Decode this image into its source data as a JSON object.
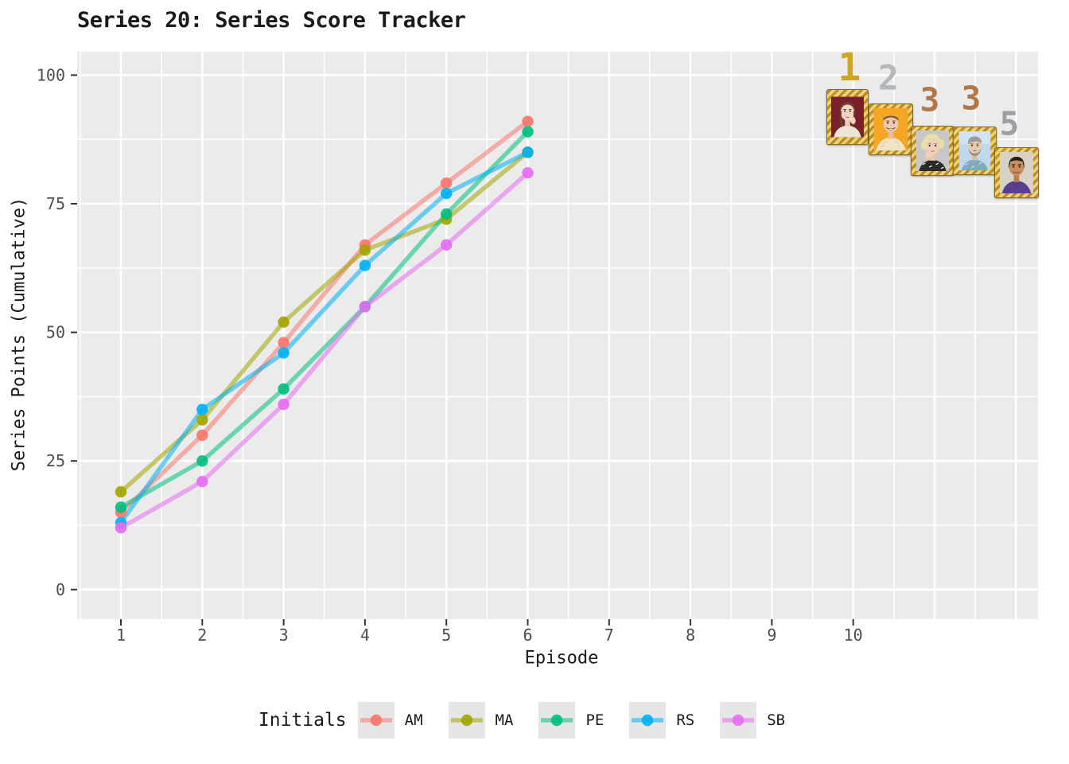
{
  "header": {
    "title": "Series 20: Series Score Tracker"
  },
  "chart_data": {
    "type": "line",
    "title": "Series 20: Series Score Tracker",
    "x": [
      1,
      2,
      3,
      4,
      5,
      6
    ],
    "xlabel": "Episode",
    "ylabel": "Series Points (Cumulative)",
    "x_ticks": [
      1,
      2,
      3,
      4,
      5,
      6,
      7,
      8,
      9,
      10
    ],
    "y_ticks": [
      0,
      25,
      50,
      75,
      100
    ],
    "xlim": [
      0.45,
      12.3
    ],
    "ylim": [
      -5.8,
      104.6
    ],
    "grid": "white major and minor gridlines on grey panel",
    "panel_color": "#EBEBEB",
    "legend_title": "Initials",
    "legend_position": "bottom",
    "series": [
      {
        "name": "AM",
        "color": "#F8766D",
        "values": [
          15,
          30,
          48,
          67,
          79,
          91
        ]
      },
      {
        "name": "MA",
        "color": "#A3A500",
        "values": [
          19,
          33,
          52,
          66,
          72,
          85
        ]
      },
      {
        "name": "PE",
        "color": "#00BF7D",
        "values": [
          16,
          25,
          39,
          55,
          73,
          89
        ]
      },
      {
        "name": "RS",
        "color": "#00B0F6",
        "values": [
          13,
          35,
          46,
          63,
          77,
          85
        ]
      },
      {
        "name": "SB",
        "color": "#E76BF3",
        "values": [
          12,
          21,
          36,
          55,
          67,
          81
        ]
      }
    ]
  },
  "rankings": {
    "items": [
      {
        "rank": "1",
        "medal_color": "#D1A421"
      },
      {
        "rank": "2",
        "medal_color": "#B5B8BA"
      },
      {
        "rank": "3",
        "medal_color": "#B0784A"
      },
      {
        "rank": "3",
        "medal_color": "#B0784A"
      },
      {
        "rank": "5",
        "medal_color": "#9C9FA1"
      }
    ]
  }
}
